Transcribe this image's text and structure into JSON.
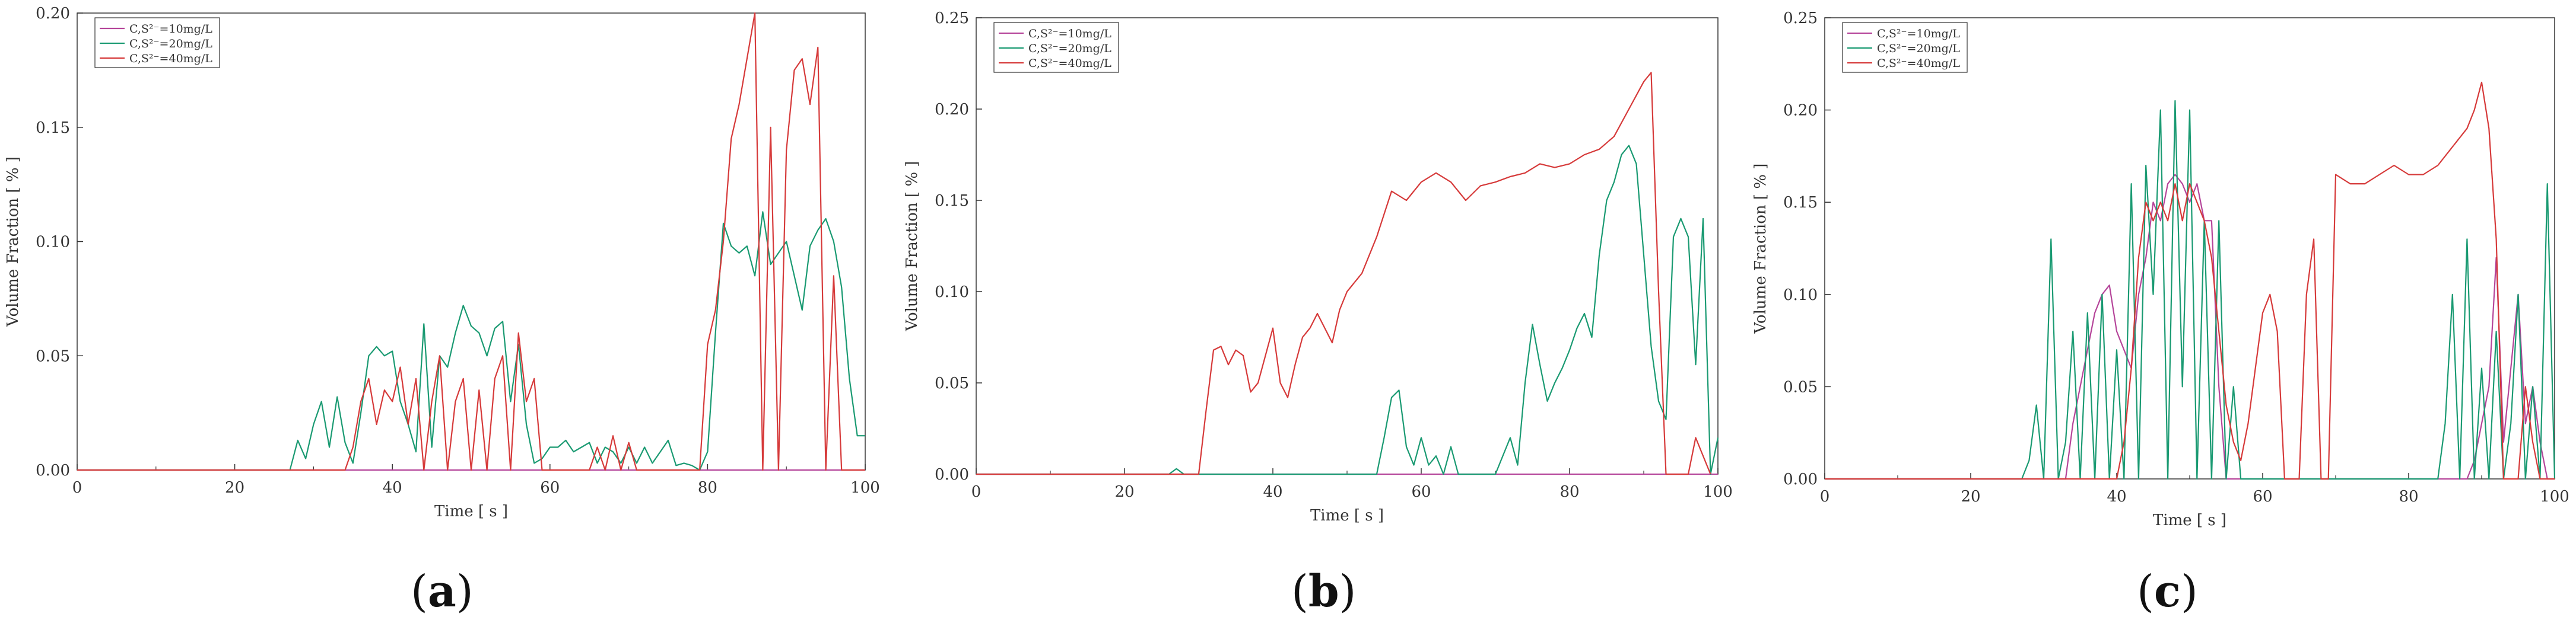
{
  "chart_data": [
    {
      "panel": "(a)",
      "type": "line",
      "xlabel": "Time [ s ]",
      "ylabel": "Volume Fraction [ % ]",
      "xlim": [
        0,
        100
      ],
      "ylim": [
        0,
        0.2
      ],
      "xticks": [
        "0",
        "20",
        "40",
        "60",
        "80",
        "100"
      ],
      "yticks": [
        "0.00",
        "0.05",
        "0.10",
        "0.15",
        "0.20"
      ],
      "legend_position": "top-left",
      "series": [
        {
          "name": "C,S²⁻=10mg/L",
          "color": "#b5459a",
          "x": [
            0,
            100
          ],
          "y": [
            0,
            0
          ]
        },
        {
          "name": "C,S²⁻=20mg/L",
          "color": "#1a9a72",
          "x": [
            0,
            27,
            28,
            29,
            30,
            31,
            32,
            33,
            34,
            35,
            36,
            37,
            38,
            39,
            40,
            41,
            42,
            43,
            44,
            45,
            46,
            47,
            48,
            49,
            50,
            51,
            52,
            53,
            54,
            55,
            56,
            57,
            58,
            59,
            60,
            61,
            62,
            63,
            64,
            65,
            66,
            67,
            68,
            69,
            70,
            71,
            72,
            73,
            74,
            75,
            76,
            77,
            78,
            79,
            80,
            81,
            82,
            83,
            84,
            85,
            86,
            87,
            88,
            89,
            90,
            91,
            92,
            93,
            94,
            95,
            96,
            97,
            98,
            99,
            100
          ],
          "y": [
            0,
            0,
            0.013,
            0.005,
            0.02,
            0.03,
            0.01,
            0.032,
            0.012,
            0.003,
            0.025,
            0.05,
            0.054,
            0.05,
            0.052,
            0.03,
            0.02,
            0.008,
            0.064,
            0.01,
            0.05,
            0.045,
            0.06,
            0.072,
            0.063,
            0.06,
            0.05,
            0.062,
            0.065,
            0.03,
            0.055,
            0.02,
            0.003,
            0.005,
            0.01,
            0.01,
            0.013,
            0.008,
            0.01,
            0.012,
            0.003,
            0.01,
            0.008,
            0.003,
            0.01,
            0.003,
            0.01,
            0.003,
            0.008,
            0.013,
            0.002,
            0.003,
            0.002,
            0,
            0.008,
            0.06,
            0.108,
            0.098,
            0.095,
            0.098,
            0.085,
            0.113,
            0.09,
            0.095,
            0.1,
            0.085,
            0.07,
            0.098,
            0.105,
            0.11,
            0.1,
            0.08,
            0.04,
            0.015,
            0.015
          ]
        },
        {
          "name": "C,S²⁻=40mg/L",
          "color": "#d63a3a",
          "x": [
            0,
            34,
            35,
            36,
            37,
            38,
            39,
            40,
            41,
            42,
            43,
            44,
            45,
            46,
            47,
            48,
            49,
            50,
            51,
            52,
            53,
            54,
            55,
            56,
            57,
            58,
            59,
            60,
            65,
            66,
            67,
            68,
            69,
            70,
            71,
            72,
            79,
            80,
            81,
            82,
            83,
            84,
            85,
            86,
            87,
            88,
            89,
            90,
            91,
            92,
            93,
            94,
            95,
            96,
            97,
            98,
            99,
            100
          ],
          "y": [
            0,
            0,
            0.01,
            0.03,
            0.04,
            0.02,
            0.035,
            0.03,
            0.045,
            0.02,
            0.04,
            0.0,
            0.03,
            0.05,
            0.0,
            0.03,
            0.04,
            0.0,
            0.035,
            0.0,
            0.04,
            0.05,
            0.0,
            0.06,
            0.03,
            0.04,
            0.0,
            0.0,
            0.0,
            0.01,
            0.0,
            0.015,
            0.0,
            0.012,
            0.0,
            0.0,
            0.0,
            0.055,
            0.07,
            0.1,
            0.145,
            0.16,
            0.18,
            0.2,
            0.0,
            0.15,
            0.0,
            0.14,
            0.175,
            0.18,
            0.16,
            0.185,
            0.0,
            0.085,
            0.0,
            0.0,
            0.0,
            0.0
          ]
        }
      ]
    },
    {
      "panel": "(b)",
      "type": "line",
      "xlabel": "Time [ s ]",
      "ylabel": "Volume Fraction [ % ]",
      "xlim": [
        0,
        100
      ],
      "ylim": [
        0,
        0.25
      ],
      "xticks": [
        "0",
        "20",
        "40",
        "60",
        "80",
        "100"
      ],
      "yticks": [
        "0.00",
        "0.05",
        "0.10",
        "0.15",
        "0.20",
        "0.25"
      ],
      "legend_position": "top-left",
      "series": [
        {
          "name": "C,S²⁻=10mg/L",
          "color": "#b5459a",
          "x": [
            0,
            100
          ],
          "y": [
            0,
            0
          ]
        },
        {
          "name": "C,S²⁻=20mg/L",
          "color": "#1a9a72",
          "x": [
            0,
            26,
            27,
            28,
            29,
            54,
            55,
            56,
            57,
            58,
            59,
            60,
            61,
            62,
            63,
            64,
            65,
            66,
            70,
            71,
            72,
            73,
            74,
            75,
            76,
            77,
            78,
            79,
            80,
            81,
            82,
            83,
            84,
            85,
            86,
            87,
            88,
            89,
            90,
            91,
            92,
            93,
            94,
            95,
            96,
            97,
            98,
            99,
            100
          ],
          "y": [
            0,
            0,
            0.003,
            0,
            0,
            0,
            0.02,
            0.042,
            0.046,
            0.015,
            0.005,
            0.02,
            0.005,
            0.01,
            0.0,
            0.015,
            0.0,
            0.0,
            0.0,
            0.01,
            0.02,
            0.005,
            0.05,
            0.082,
            0.06,
            0.04,
            0.05,
            0.058,
            0.068,
            0.08,
            0.088,
            0.075,
            0.12,
            0.15,
            0.16,
            0.175,
            0.18,
            0.17,
            0.12,
            0.07,
            0.04,
            0.03,
            0.13,
            0.14,
            0.13,
            0.06,
            0.14,
            0.0,
            0.02
          ]
        },
        {
          "name": "C,S²⁻=40mg/L",
          "color": "#d63a3a",
          "x": [
            0,
            30,
            31,
            32,
            33,
            34,
            35,
            36,
            37,
            38,
            39,
            40,
            41,
            42,
            43,
            44,
            45,
            46,
            47,
            48,
            49,
            50,
            52,
            54,
            56,
            58,
            60,
            62,
            64,
            66,
            68,
            70,
            72,
            74,
            76,
            78,
            80,
            82,
            84,
            86,
            88,
            90,
            91,
            92,
            93,
            94,
            95,
            96,
            97,
            98,
            99
          ],
          "y": [
            0,
            0,
            0.035,
            0.068,
            0.07,
            0.06,
            0.068,
            0.065,
            0.045,
            0.05,
            0.065,
            0.08,
            0.05,
            0.042,
            0.06,
            0.075,
            0.08,
            0.088,
            0.08,
            0.072,
            0.09,
            0.1,
            0.11,
            0.13,
            0.155,
            0.15,
            0.16,
            0.165,
            0.16,
            0.15,
            0.158,
            0.16,
            0.163,
            0.165,
            0.17,
            0.168,
            0.17,
            0.175,
            0.178,
            0.185,
            0.2,
            0.215,
            0.22,
            0.1,
            0.0,
            0.0,
            0.0,
            0.0,
            0.02,
            0.01,
            0.0
          ]
        }
      ]
    },
    {
      "panel": "(c)",
      "type": "line",
      "xlabel": "Time [ s ]",
      "ylabel": "Volume Fraction [ % ]",
      "xlim": [
        0,
        100
      ],
      "ylim": [
        0,
        0.25
      ],
      "xticks": [
        "0",
        "20",
        "40",
        "60",
        "80",
        "100"
      ],
      "yticks": [
        "0.00",
        "0.05",
        "0.10",
        "0.15",
        "0.20",
        "0.25"
      ],
      "legend_position": "top-left",
      "series": [
        {
          "name": "C,S²⁻=10mg/L",
          "color": "#b5459a",
          "x": [
            0,
            33,
            34,
            35,
            36,
            37,
            38,
            39,
            40,
            41,
            42,
            43,
            44,
            45,
            46,
            47,
            48,
            49,
            50,
            51,
            52,
            53,
            54,
            55,
            56,
            88,
            89,
            90,
            91,
            92,
            93,
            94,
            95,
            96,
            97,
            98,
            99,
            100
          ],
          "y": [
            0,
            0,
            0.03,
            0.05,
            0.07,
            0.09,
            0.1,
            0.105,
            0.08,
            0.07,
            0.06,
            0.1,
            0.12,
            0.15,
            0.14,
            0.16,
            0.165,
            0.16,
            0.15,
            0.16,
            0.14,
            0.14,
            0.05,
            0.0,
            0.0,
            0.0,
            0.01,
            0.03,
            0.05,
            0.12,
            0.02,
            0.06,
            0.1,
            0.03,
            0.05,
            0.02,
            0.0,
            0.0
          ]
        },
        {
          "name": "C,S²⁻=20mg/L",
          "color": "#1a9a72",
          "x": [
            0,
            27,
            28,
            29,
            30,
            31,
            32,
            33,
            34,
            35,
            36,
            37,
            38,
            39,
            40,
            41,
            42,
            43,
            44,
            45,
            46,
            47,
            48,
            49,
            50,
            51,
            52,
            53,
            54,
            55,
            56,
            57,
            58,
            59,
            60,
            84,
            85,
            86,
            87,
            88,
            89,
            90,
            91,
            92,
            93,
            94,
            95,
            96,
            97,
            98,
            99,
            100
          ],
          "y": [
            0,
            0,
            0.01,
            0.04,
            0.0,
            0.13,
            0.0,
            0.02,
            0.08,
            0.0,
            0.09,
            0.0,
            0.1,
            0.0,
            0.07,
            0.0,
            0.16,
            0.0,
            0.17,
            0.1,
            0.2,
            0.0,
            0.205,
            0.05,
            0.2,
            0.0,
            0.14,
            0.0,
            0.14,
            0.0,
            0.05,
            0.0,
            0.0,
            0.0,
            0.0,
            0.0,
            0.03,
            0.1,
            0.0,
            0.13,
            0.0,
            0.06,
            0.0,
            0.08,
            0.0,
            0.03,
            0.1,
            0.0,
            0.05,
            0.0,
            0.16,
            0.0
          ]
        },
        {
          "name": "C,S²⁻=40mg/L",
          "color": "#d63a3a",
          "x": [
            0,
            40,
            41,
            42,
            43,
            44,
            45,
            46,
            47,
            48,
            49,
            50,
            51,
            52,
            53,
            54,
            55,
            56,
            57,
            58,
            59,
            60,
            61,
            62,
            63,
            64,
            65,
            66,
            67,
            68,
            69,
            70,
            72,
            74,
            76,
            78,
            80,
            82,
            84,
            86,
            88,
            89,
            90,
            91,
            92,
            93,
            94,
            95,
            96,
            97,
            98,
            99,
            100
          ],
          "y": [
            0,
            0,
            0.02,
            0.06,
            0.12,
            0.15,
            0.14,
            0.15,
            0.14,
            0.16,
            0.14,
            0.16,
            0.15,
            0.14,
            0.12,
            0.08,
            0.04,
            0.02,
            0.01,
            0.03,
            0.06,
            0.09,
            0.1,
            0.08,
            0.0,
            0.0,
            0.0,
            0.1,
            0.13,
            0.0,
            0.0,
            0.165,
            0.16,
            0.16,
            0.165,
            0.17,
            0.165,
            0.165,
            0.17,
            0.18,
            0.19,
            0.2,
            0.215,
            0.19,
            0.13,
            0.0,
            0.0,
            0.0,
            0.05,
            0.02,
            0.0,
            0.0,
            0.0
          ]
        }
      ]
    }
  ]
}
